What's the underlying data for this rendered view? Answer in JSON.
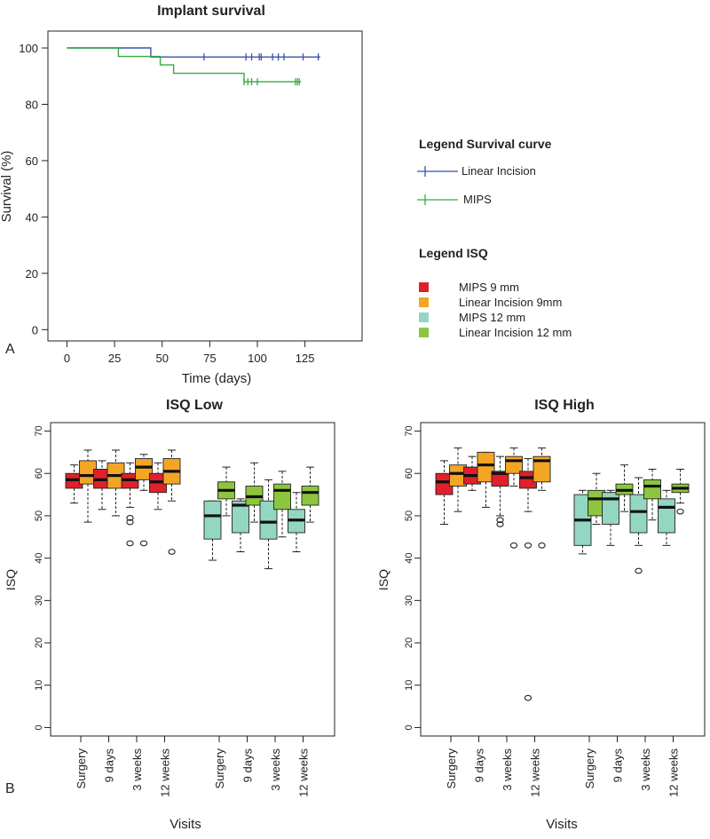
{
  "panel_labels": {
    "a": "A",
    "b": "B"
  },
  "colors": {
    "linear": "#3355aa",
    "mips": "#33aa44",
    "mips9": "#e0202a",
    "lin9": "#f3a524",
    "mips12": "#93d6c2",
    "lin12": "#8cc63e"
  },
  "legend_survival": {
    "title": "Legend Survival curve",
    "items": [
      {
        "label": "Linear Incision",
        "color_key": "linear"
      },
      {
        "label": "MIPS",
        "color_key": "mips"
      }
    ]
  },
  "legend_isq": {
    "title": "Legend ISQ",
    "items": [
      {
        "label": "MIPS 9 mm",
        "color_key": "mips9"
      },
      {
        "label": "Linear Incision 9mm",
        "color_key": "lin9"
      },
      {
        "label": "MIPS 12 mm",
        "color_key": "mips12"
      },
      {
        "label": "Linear Incision 12 mm",
        "color_key": "lin12"
      }
    ]
  },
  "chart_data": [
    {
      "id": "survival",
      "type": "line",
      "title": "Implant survival",
      "xlabel": "Time (days)",
      "ylabel": "Survival (%)",
      "xlim": [
        -10,
        155
      ],
      "ylim": [
        -4,
        106
      ],
      "xticks": [
        0,
        25,
        50,
        75,
        100,
        125
      ],
      "yticks": [
        0,
        20,
        40,
        60,
        80,
        100
      ],
      "series": [
        {
          "name": "Linear Incision",
          "color_key": "linear",
          "steps": [
            [
              0,
              100
            ],
            [
              44,
              100
            ],
            [
              44,
              96.8
            ],
            [
              133,
              96.8
            ]
          ],
          "censor_x": [
            72,
            94,
            97,
            101,
            102,
            108,
            111,
            114,
            124,
            132
          ],
          "censor_y": 96.8
        },
        {
          "name": "MIPS",
          "color_key": "mips",
          "steps": [
            [
              0,
              100
            ],
            [
              27,
              100
            ],
            [
              27,
              97
            ],
            [
              49,
              97
            ],
            [
              49,
              94
            ],
            [
              56,
              94
            ],
            [
              56,
              91
            ],
            [
              93,
              91
            ],
            [
              93,
              88
            ],
            [
              123,
              88
            ]
          ],
          "censor_x": [
            93,
            95,
            97,
            100,
            120,
            121,
            122
          ],
          "censor_y": 88
        }
      ]
    },
    {
      "id": "isq_low",
      "type": "box",
      "title": "ISQ Low",
      "xlabel": "Visits",
      "ylabel": "ISQ",
      "ylim": [
        -2,
        72
      ],
      "yticks": [
        0,
        10,
        20,
        30,
        40,
        50,
        60,
        70
      ],
      "visit_labels": [
        "Surgery",
        "9 days",
        "3 weeks",
        "12 weeks",
        "Surgery",
        "9 days",
        "3 weeks",
        "12 weeks"
      ],
      "boxes": [
        {
          "group": 1,
          "visit": 0,
          "slot": 0,
          "color_key": "mips9",
          "whisker_low": 53,
          "q1": 56.5,
          "median": 58.5,
          "q3": 60,
          "whisker_high": 62,
          "outliers": []
        },
        {
          "group": 1,
          "visit": 0,
          "slot": 1,
          "color_key": "lin9",
          "whisker_low": 48.5,
          "q1": 57.5,
          "median": 59.5,
          "q3": 63,
          "whisker_high": 65.5,
          "outliers": []
        },
        {
          "group": 1,
          "visit": 1,
          "slot": 0,
          "color_key": "mips9",
          "whisker_low": 51.5,
          "q1": 56.5,
          "median": 58.5,
          "q3": 61,
          "whisker_high": 63,
          "outliers": []
        },
        {
          "group": 1,
          "visit": 1,
          "slot": 1,
          "color_key": "lin9",
          "whisker_low": 50,
          "q1": 56.5,
          "median": 59.5,
          "q3": 62.5,
          "whisker_high": 65.5,
          "outliers": []
        },
        {
          "group": 1,
          "visit": 2,
          "slot": 0,
          "color_key": "mips9",
          "whisker_low": 52,
          "q1": 56.5,
          "median": 58.5,
          "q3": 60,
          "whisker_high": 62.5,
          "outliers": [
            49.5,
            48.5,
            43.5
          ]
        },
        {
          "group": 1,
          "visit": 2,
          "slot": 1,
          "color_key": "lin9",
          "whisker_low": 56,
          "q1": 58.5,
          "median": 61.5,
          "q3": 63.5,
          "whisker_high": 64.5,
          "outliers": [
            43.5
          ]
        },
        {
          "group": 1,
          "visit": 3,
          "slot": 0,
          "color_key": "mips9",
          "whisker_low": 51.5,
          "q1": 55.5,
          "median": 58,
          "q3": 60,
          "whisker_high": 62.5,
          "outliers": []
        },
        {
          "group": 1,
          "visit": 3,
          "slot": 1,
          "color_key": "lin9",
          "whisker_low": 53.5,
          "q1": 57.5,
          "median": 60.5,
          "q3": 63.5,
          "whisker_high": 65.5,
          "outliers": [
            41.5
          ]
        },
        {
          "group": 2,
          "visit": 0,
          "slot": 0,
          "color_key": "mips12",
          "whisker_low": 39.5,
          "q1": 44.5,
          "median": 50,
          "q3": 53.5,
          "whisker_high": 53.5,
          "outliers": []
        },
        {
          "group": 2,
          "visit": 0,
          "slot": 1,
          "color_key": "lin12",
          "whisker_low": 50,
          "q1": 54,
          "median": 56,
          "q3": 58,
          "whisker_high": 61.5,
          "outliers": []
        },
        {
          "group": 2,
          "visit": 1,
          "slot": 0,
          "color_key": "mips12",
          "whisker_low": 41.5,
          "q1": 46,
          "median": 52.5,
          "q3": 53.5,
          "whisker_high": 54,
          "outliers": []
        },
        {
          "group": 2,
          "visit": 1,
          "slot": 1,
          "color_key": "lin12",
          "whisker_low": 48.5,
          "q1": 52.5,
          "median": 54.5,
          "q3": 57,
          "whisker_high": 62.5,
          "outliers": []
        },
        {
          "group": 2,
          "visit": 2,
          "slot": 0,
          "color_key": "mips12",
          "whisker_low": 37.5,
          "q1": 44.5,
          "median": 48.5,
          "q3": 53.5,
          "whisker_high": 58.5,
          "outliers": []
        },
        {
          "group": 2,
          "visit": 2,
          "slot": 1,
          "color_key": "lin12",
          "whisker_low": 45,
          "q1": 51.5,
          "median": 56,
          "q3": 57.5,
          "whisker_high": 60.5,
          "outliers": []
        },
        {
          "group": 2,
          "visit": 3,
          "slot": 0,
          "color_key": "mips12",
          "whisker_low": 41.5,
          "q1": 46,
          "median": 49,
          "q3": 51.5,
          "whisker_high": 55.5,
          "outliers": []
        },
        {
          "group": 2,
          "visit": 3,
          "slot": 1,
          "color_key": "lin12",
          "whisker_low": 48.5,
          "q1": 52.5,
          "median": 55.5,
          "q3": 57,
          "whisker_high": 61.5,
          "outliers": []
        }
      ]
    },
    {
      "id": "isq_high",
      "type": "box",
      "title": "ISQ High",
      "xlabel": "Visits",
      "ylabel": "ISQ",
      "ylim": [
        -2,
        72
      ],
      "yticks": [
        0,
        10,
        20,
        30,
        40,
        50,
        60,
        70
      ],
      "visit_labels": [
        "Surgery",
        "9 days",
        "3 weeks",
        "12 weeks",
        "Surgery",
        "9 days",
        "3 weeks",
        "12 weeks"
      ],
      "boxes": [
        {
          "group": 1,
          "visit": 0,
          "slot": 0,
          "color_key": "mips9",
          "whisker_low": 48,
          "q1": 55,
          "median": 58,
          "q3": 60,
          "whisker_high": 63,
          "outliers": []
        },
        {
          "group": 1,
          "visit": 0,
          "slot": 1,
          "color_key": "lin9",
          "whisker_low": 51,
          "q1": 57,
          "median": 60,
          "q3": 62,
          "whisker_high": 66,
          "outliers": []
        },
        {
          "group": 1,
          "visit": 1,
          "slot": 0,
          "color_key": "mips9",
          "whisker_low": 56,
          "q1": 57.5,
          "median": 59.5,
          "q3": 61.5,
          "whisker_high": 64,
          "outliers": []
        },
        {
          "group": 1,
          "visit": 1,
          "slot": 1,
          "color_key": "lin9",
          "whisker_low": 52,
          "q1": 58,
          "median": 62,
          "q3": 65,
          "whisker_high": 65,
          "outliers": []
        },
        {
          "group": 1,
          "visit": 2,
          "slot": 0,
          "color_key": "mips9",
          "whisker_low": 50,
          "q1": 57,
          "median": 60,
          "q3": 60.5,
          "whisker_high": 64,
          "outliers": [
            49,
            48
          ]
        },
        {
          "group": 1,
          "visit": 2,
          "slot": 1,
          "color_key": "lin9",
          "whisker_low": 57,
          "q1": 60,
          "median": 63,
          "q3": 64,
          "whisker_high": 66,
          "outliers": [
            43
          ]
        },
        {
          "group": 1,
          "visit": 3,
          "slot": 0,
          "color_key": "mips9",
          "whisker_low": 51,
          "q1": 56.5,
          "median": 59,
          "q3": 60.5,
          "whisker_high": 63.5,
          "outliers": [
            43,
            7
          ]
        },
        {
          "group": 1,
          "visit": 3,
          "slot": 1,
          "color_key": "lin9",
          "whisker_low": 56,
          "q1": 58,
          "median": 63,
          "q3": 64,
          "whisker_high": 66,
          "outliers": [
            43
          ]
        },
        {
          "group": 2,
          "visit": 0,
          "slot": 0,
          "color_key": "mips12",
          "whisker_low": 41,
          "q1": 43,
          "median": 49,
          "q3": 55,
          "whisker_high": 56,
          "outliers": []
        },
        {
          "group": 2,
          "visit": 0,
          "slot": 1,
          "color_key": "lin12",
          "whisker_low": 48,
          "q1": 50,
          "median": 54,
          "q3": 56,
          "whisker_high": 60,
          "outliers": []
        },
        {
          "group": 2,
          "visit": 1,
          "slot": 0,
          "color_key": "mips12",
          "whisker_low": 43,
          "q1": 48,
          "median": 54,
          "q3": 55.5,
          "whisker_high": 56,
          "outliers": []
        },
        {
          "group": 2,
          "visit": 1,
          "slot": 1,
          "color_key": "lin12",
          "whisker_low": 51,
          "q1": 55,
          "median": 56,
          "q3": 57.5,
          "whisker_high": 62,
          "outliers": []
        },
        {
          "group": 2,
          "visit": 2,
          "slot": 0,
          "color_key": "mips12",
          "whisker_low": 43,
          "q1": 46,
          "median": 51,
          "q3": 55,
          "whisker_high": 59,
          "outliers": [
            37
          ]
        },
        {
          "group": 2,
          "visit": 2,
          "slot": 1,
          "color_key": "lin12",
          "whisker_low": 49,
          "q1": 54,
          "median": 57,
          "q3": 58.5,
          "whisker_high": 61,
          "outliers": []
        },
        {
          "group": 2,
          "visit": 3,
          "slot": 0,
          "color_key": "mips12",
          "whisker_low": 43,
          "q1": 46,
          "median": 52,
          "q3": 54,
          "whisker_high": 56,
          "outliers": []
        },
        {
          "group": 2,
          "visit": 3,
          "slot": 1,
          "color_key": "lin12",
          "whisker_low": 53,
          "q1": 55.5,
          "median": 56.5,
          "q3": 57.5,
          "whisker_high": 61,
          "outliers": [
            51
          ]
        }
      ]
    }
  ]
}
